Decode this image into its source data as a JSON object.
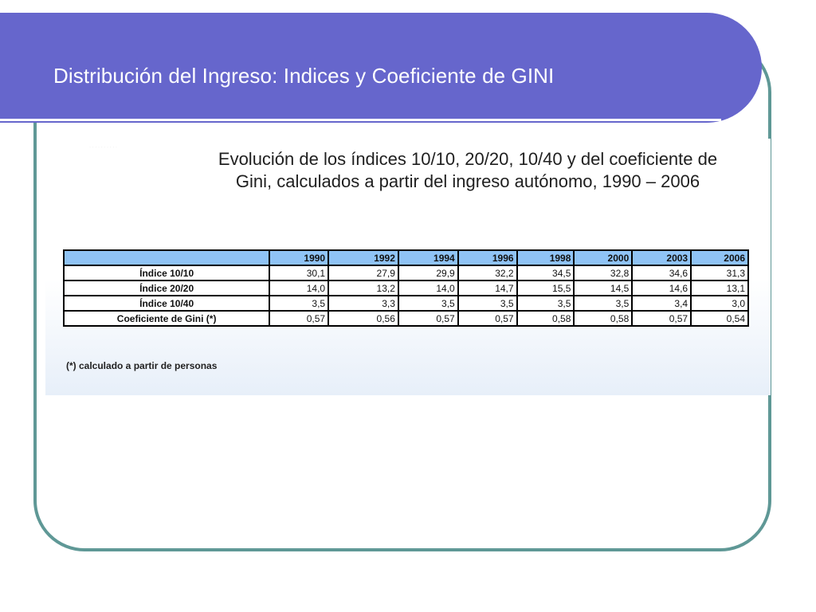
{
  "slide": {
    "title": "Distribución del Ingreso: Indices y Coeficiente de GINI",
    "colors": {
      "title_band": "#6666cc",
      "frame_border": "#5f9896",
      "table_header": "#8fc3f5"
    }
  },
  "content": {
    "subtitle_line1": "Evolución de los índices 10/10, 20/20, 10/40 y del coeficiente de",
    "subtitle_line2": "Gini, calculados a partir del ingreso autónomo, 1990 – 2006",
    "footnote": "(*) calculado a partir de personas"
  },
  "table": {
    "columns": [
      "1990",
      "1992",
      "1994",
      "1996",
      "1998",
      "2000",
      "2003",
      "2006"
    ],
    "rows": [
      {
        "label": "Índice 10/10",
        "values": [
          "30,1",
          "27,9",
          "29,9",
          "32,2",
          "34,5",
          "32,8",
          "34,6",
          "31,3"
        ]
      },
      {
        "label": "Índice 20/20",
        "values": [
          "14,0",
          "13,2",
          "14,0",
          "14,7",
          "15,5",
          "14,5",
          "14,6",
          "13,1"
        ]
      },
      {
        "label": "Índice 10/40",
        "values": [
          "3,5",
          "3,3",
          "3,5",
          "3,5",
          "3,5",
          "3,5",
          "3,4",
          "3,0"
        ]
      },
      {
        "label": "Coeficiente de Gini (*)",
        "values": [
          "0,57",
          "0,56",
          "0,57",
          "0,57",
          "0,58",
          "0,58",
          "0,57",
          "0,54"
        ]
      }
    ]
  }
}
